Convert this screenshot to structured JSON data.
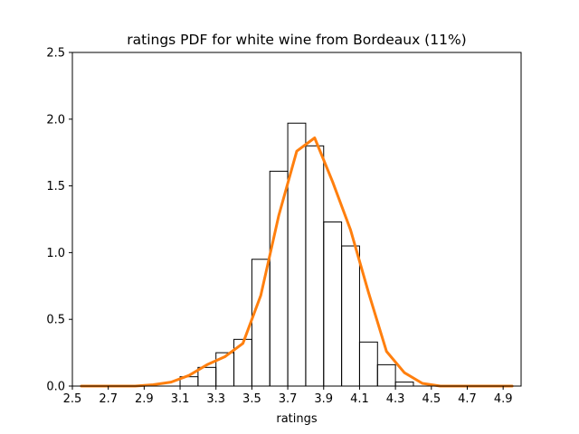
{
  "chart_data": {
    "type": "bar",
    "title": "ratings PDF for white wine from Bordeaux (11%)",
    "xlabel": "ratings",
    "ylabel": "",
    "xlim": [
      2.5,
      5.0
    ],
    "ylim": [
      0,
      2.5
    ],
    "x_ticks": [
      "2.5",
      "2.7",
      "2.9",
      "3.1",
      "3.3",
      "3.5",
      "3.7",
      "3.9",
      "4.1",
      "4.3",
      "4.5",
      "4.7",
      "4.9"
    ],
    "y_ticks": [
      "0.0",
      "0.5",
      "1.0",
      "1.5",
      "2.0",
      "2.5"
    ],
    "grid": false,
    "histogram": {
      "style": "step",
      "color": "#000000",
      "bin_edges": [
        3.1,
        3.2,
        3.3,
        3.4,
        3.5,
        3.6,
        3.7,
        3.8,
        3.9,
        4.0,
        4.1,
        4.2,
        4.3,
        4.4
      ],
      "density": [
        0.07,
        0.14,
        0.25,
        0.35,
        0.95,
        1.61,
        1.97,
        1.8,
        1.23,
        1.05,
        0.33,
        0.16,
        0.03
      ]
    },
    "pdf_curve": {
      "style": "line",
      "color": "#ff7f0e",
      "x": [
        2.55,
        2.65,
        2.75,
        2.85,
        2.95,
        3.05,
        3.15,
        3.25,
        3.35,
        3.45,
        3.55,
        3.65,
        3.75,
        3.85,
        3.95,
        4.05,
        4.15,
        4.25,
        4.35,
        4.45,
        4.55,
        4.65,
        4.75,
        4.85,
        4.95
      ],
      "y": [
        0.0,
        0.0,
        0.0,
        0.0,
        0.01,
        0.03,
        0.08,
        0.16,
        0.22,
        0.32,
        0.68,
        1.28,
        1.76,
        1.86,
        1.53,
        1.17,
        0.7,
        0.26,
        0.1,
        0.02,
        0.0,
        0.0,
        0.0,
        0.0,
        0.0
      ]
    }
  }
}
